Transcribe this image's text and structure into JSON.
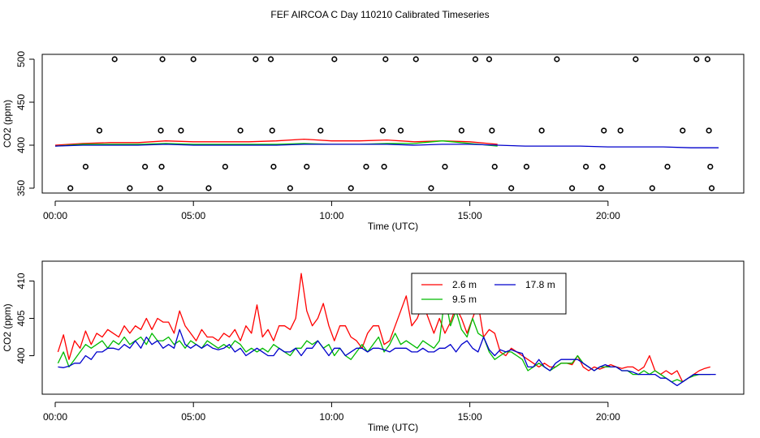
{
  "title": "FEF AIRCOA C  Day 110210  Calibrated Timeseries",
  "chart_data": [
    {
      "type": "scatter",
      "xlabel": "Time (UTC)",
      "ylabel": "CO2 (ppm)",
      "xlim": [
        0,
        24
      ],
      "ylim": [
        350,
        500
      ],
      "x_ticks": [
        0,
        5,
        10,
        15,
        20
      ],
      "x_tick_labels": [
        "00:00",
        "05:00",
        "10:00",
        "15:00",
        "20:00"
      ],
      "y_ticks": [
        350,
        400,
        450,
        500
      ],
      "y_tick_labels": [
        "350",
        "400",
        "450",
        "500"
      ],
      "grid": false,
      "legend": "none",
      "point_series": {
        "marker": "open-circle",
        "x": [
          0.55,
          1.1,
          1.6,
          2.15,
          2.7,
          3.25,
          3.8,
          3.85,
          3.82,
          3.88,
          4.55,
          5.0,
          5.55,
          6.15,
          6.7,
          7.25,
          7.8,
          7.85,
          7.9,
          8.5,
          9.1,
          9.6,
          10.1,
          10.7,
          11.25,
          11.85,
          11.9,
          11.95,
          12.5,
          13.05,
          13.6,
          14.1,
          14.7,
          15.2,
          15.7,
          15.8,
          15.9,
          16.5,
          17.05,
          17.6,
          18.15,
          18.7,
          19.2,
          19.75,
          19.8,
          19.85,
          20.45,
          21.0,
          21.6,
          22.15,
          22.7,
          23.2,
          23.6,
          23.65,
          23.7,
          23.75
        ],
        "y": [
          350,
          375,
          417,
          500,
          350,
          375,
          350,
          375,
          417,
          500,
          417,
          500,
          350,
          375,
          417,
          500,
          500,
          417,
          375,
          350,
          375,
          417,
          500,
          350,
          375,
          417,
          375,
          500,
          417,
          500,
          350,
          375,
          417,
          500,
          500,
          417,
          375,
          350,
          375,
          417,
          500,
          350,
          375,
          350,
          375,
          417,
          417,
          500,
          350,
          375,
          417,
          500,
          500,
          417,
          375,
          350
        ]
      },
      "line_series": [
        {
          "color": "#ff0000",
          "x": [
            0,
            1,
            2,
            3,
            4,
            5,
            6,
            7,
            8,
            9,
            10,
            11,
            12,
            13,
            14,
            15,
            16
          ],
          "y": [
            400,
            402,
            403,
            403,
            405,
            404,
            404,
            404,
            405,
            407,
            405,
            405,
            406,
            404,
            405,
            404,
            401
          ]
        },
        {
          "color": "#00cc00",
          "x": [
            0,
            1,
            2,
            3,
            4,
            5,
            6,
            7,
            8,
            9,
            10,
            11,
            12,
            13,
            14,
            15,
            16
          ],
          "y": [
            399,
            401,
            401,
            401,
            402,
            401,
            401,
            401,
            401,
            402,
            401,
            401,
            402,
            402,
            405,
            402,
            399
          ]
        },
        {
          "color": "#0000cc",
          "x": [
            0,
            1,
            2,
            3,
            4,
            5,
            6,
            7,
            8,
            9,
            10,
            11,
            12,
            13,
            14,
            15,
            16,
            17,
            18,
            19,
            20,
            21,
            22,
            23,
            24
          ],
          "y": [
            399,
            400,
            400,
            400,
            401,
            400,
            400,
            400,
            400,
            401,
            401,
            401,
            401,
            400,
            401,
            401,
            400,
            399,
            399,
            399,
            398,
            398,
            398,
            397,
            397
          ]
        }
      ]
    },
    {
      "type": "line",
      "xlabel": "Time (UTC)",
      "ylabel": "CO2 (ppm)",
      "xlim": [
        0,
        24
      ],
      "ylim": [
        395.5,
        412
      ],
      "x_ticks": [
        0,
        5,
        10,
        15,
        20
      ],
      "x_tick_labels": [
        "00:00",
        "05:00",
        "10:00",
        "15:00",
        "20:00"
      ],
      "y_ticks": [
        400,
        405,
        410
      ],
      "y_tick_labels": [
        "400",
        "405",
        "410"
      ],
      "grid": false,
      "legend": "top-center",
      "series": [
        {
          "name": "2.6 m",
          "color": "#ff0000",
          "x": [
            0.1,
            0.3,
            0.5,
            0.7,
            0.9,
            1.1,
            1.3,
            1.5,
            1.7,
            1.9,
            2.1,
            2.3,
            2.5,
            2.7,
            2.9,
            3.1,
            3.3,
            3.5,
            3.7,
            3.9,
            4.1,
            4.3,
            4.5,
            4.7,
            4.9,
            5.1,
            5.3,
            5.5,
            5.7,
            5.9,
            6.1,
            6.3,
            6.5,
            6.7,
            6.9,
            7.1,
            7.3,
            7.5,
            7.7,
            7.9,
            8.1,
            8.3,
            8.5,
            8.7,
            8.9,
            9.1,
            9.3,
            9.5,
            9.7,
            9.9,
            10.1,
            10.3,
            10.5,
            10.7,
            10.9,
            11.1,
            11.3,
            11.5,
            11.7,
            11.9,
            12.1,
            12.3,
            12.5,
            12.7,
            12.9,
            13.1,
            13.3,
            13.5,
            13.7,
            13.9,
            14.1,
            14.3,
            14.5,
            14.7,
            14.9,
            15.1,
            15.3,
            15.5,
            15.7,
            15.9,
            16.1,
            16.3,
            16.5,
            16.7,
            16.9,
            17.1,
            17.3,
            17.5,
            17.7,
            17.9,
            18.1,
            18.3,
            18.5,
            18.7,
            18.9,
            19.1,
            19.3,
            19.5,
            19.7,
            19.9,
            20.1,
            20.3,
            20.5,
            20.7,
            20.9,
            21.1,
            21.3,
            21.5,
            21.7,
            21.9,
            22.1,
            22.3,
            22.5,
            22.7,
            22.9,
            23.1,
            23.3,
            23.5,
            23.7
          ],
          "y": [
            400.5,
            402.8,
            399.5,
            402.0,
            401.0,
            403.3,
            401.5,
            403.0,
            402.5,
            403.5,
            403.0,
            402.5,
            404.0,
            403.0,
            404.0,
            403.5,
            405.0,
            403.5,
            405.0,
            404.5,
            404.5,
            403.0,
            406.0,
            404.0,
            403.0,
            402.0,
            403.5,
            402.5,
            402.5,
            402.0,
            403.0,
            402.5,
            403.5,
            402.0,
            404.0,
            403.0,
            406.8,
            402.5,
            403.5,
            402.0,
            404.0,
            404.0,
            403.5,
            405.0,
            411.0,
            406.0,
            404.0,
            405.0,
            407.0,
            404.0,
            402.0,
            404.0,
            404.0,
            402.5,
            402.0,
            401.0,
            403.0,
            404.0,
            404.0,
            401.5,
            402.0,
            404.0,
            406.0,
            408.0,
            404.0,
            405.0,
            407.0,
            405.0,
            403.0,
            405.0,
            403.0,
            404.5,
            406.5,
            405.0,
            403.0,
            405.0,
            407.0,
            402.5,
            403.5,
            403.0,
            400.5,
            400.0,
            401.0,
            400.5,
            400.0,
            399.5,
            399.0,
            398.5,
            399.0,
            398.5,
            398.5,
            399.0,
            399.0,
            398.8,
            400.0,
            398.5,
            398.0,
            398.5,
            398.2,
            398.5,
            398.8,
            398.5,
            398.3,
            398.5,
            398.5,
            398.0,
            398.5,
            400.0,
            398.0,
            397.5,
            398.0,
            397.5,
            398.0,
            396.5,
            397.0,
            397.5,
            398.0,
            398.3,
            398.5
          ]
        },
        {
          "name": "9.5 m",
          "color": "#00bb00",
          "x": [
            0.1,
            0.3,
            0.5,
            0.7,
            0.9,
            1.1,
            1.3,
            1.5,
            1.7,
            1.9,
            2.1,
            2.3,
            2.5,
            2.7,
            2.9,
            3.1,
            3.3,
            3.5,
            3.7,
            3.9,
            4.1,
            4.3,
            4.5,
            4.7,
            4.9,
            5.1,
            5.3,
            5.5,
            5.7,
            5.9,
            6.1,
            6.3,
            6.5,
            6.7,
            6.9,
            7.1,
            7.3,
            7.5,
            7.7,
            7.9,
            8.1,
            8.3,
            8.5,
            8.7,
            8.9,
            9.1,
            9.3,
            9.5,
            9.7,
            9.9,
            10.1,
            10.3,
            10.5,
            10.7,
            10.9,
            11.1,
            11.3,
            11.5,
            11.7,
            11.9,
            12.1,
            12.3,
            12.5,
            12.7,
            12.9,
            13.1,
            13.3,
            13.5,
            13.7,
            13.9,
            14.1,
            14.3,
            14.5,
            14.7,
            14.9,
            15.1,
            15.3,
            15.5,
            15.7,
            15.9,
            16.1,
            16.3,
            16.5,
            16.7,
            16.9,
            17.1,
            17.3,
            17.5,
            17.7,
            17.9,
            18.1,
            18.3,
            18.5,
            18.7,
            18.9,
            19.1,
            19.3,
            19.5,
            19.7,
            19.9,
            20.1,
            20.3,
            20.5,
            20.7,
            20.9,
            21.1,
            21.3,
            21.5,
            21.7,
            21.9,
            22.1,
            22.3,
            22.5,
            22.7,
            22.9,
            23.1,
            23.3,
            23.5,
            23.7
          ],
          "y": [
            399.0,
            400.5,
            398.5,
            399.5,
            400.5,
            401.5,
            401.0,
            401.5,
            402.0,
            401.0,
            402.0,
            401.5,
            402.5,
            401.5,
            402.0,
            402.5,
            401.5,
            403.0,
            402.0,
            402.0,
            402.5,
            401.5,
            402.0,
            401.0,
            402.0,
            401.5,
            401.0,
            402.0,
            401.5,
            401.0,
            401.5,
            401.0,
            402.0,
            401.5,
            400.5,
            401.0,
            400.5,
            401.0,
            400.5,
            401.5,
            401.0,
            400.5,
            400.0,
            401.0,
            401.0,
            402.0,
            401.5,
            402.0,
            401.0,
            401.5,
            400.0,
            401.0,
            400.0,
            399.5,
            400.5,
            401.5,
            400.5,
            401.5,
            402.5,
            400.5,
            401.5,
            403.0,
            401.5,
            402.0,
            401.5,
            401.0,
            402.0,
            401.5,
            401.0,
            402.0,
            408.0,
            404.0,
            406.0,
            403.5,
            402.5,
            405.0,
            403.0,
            402.5,
            400.5,
            399.5,
            400.0,
            400.5,
            400.5,
            400.0,
            399.5,
            398.0,
            398.5,
            399.0,
            398.5,
            398.0,
            398.5,
            399.0,
            399.0,
            399.0,
            400.0,
            399.0,
            398.5,
            398.0,
            398.5,
            398.5,
            398.5,
            398.5,
            398.0,
            398.0,
            397.5,
            397.5,
            398.0,
            397.5,
            398.0,
            397.5,
            397.0,
            396.5,
            396.8,
            396.5,
            397.0,
            397.3,
            397.5,
            397.5,
            397.5
          ]
        },
        {
          "name": "17.8 m",
          "color": "#0000cc",
          "x": [
            0.1,
            0.3,
            0.5,
            0.7,
            0.9,
            1.1,
            1.3,
            1.5,
            1.7,
            1.9,
            2.1,
            2.3,
            2.5,
            2.7,
            2.9,
            3.1,
            3.3,
            3.5,
            3.7,
            3.9,
            4.1,
            4.3,
            4.5,
            4.7,
            4.9,
            5.1,
            5.3,
            5.5,
            5.7,
            5.9,
            6.1,
            6.3,
            6.5,
            6.7,
            6.9,
            7.1,
            7.3,
            7.5,
            7.7,
            7.9,
            8.1,
            8.3,
            8.5,
            8.7,
            8.9,
            9.1,
            9.3,
            9.5,
            9.7,
            9.9,
            10.1,
            10.3,
            10.5,
            10.7,
            10.9,
            11.1,
            11.3,
            11.5,
            11.7,
            11.9,
            12.1,
            12.3,
            12.5,
            12.7,
            12.9,
            13.1,
            13.3,
            13.5,
            13.7,
            13.9,
            14.1,
            14.3,
            14.5,
            14.7,
            14.9,
            15.1,
            15.3,
            15.5,
            15.7,
            15.9,
            16.1,
            16.3,
            16.5,
            16.7,
            16.9,
            17.1,
            17.3,
            17.5,
            17.7,
            17.9,
            18.1,
            18.3,
            18.5,
            18.7,
            18.9,
            19.1,
            19.3,
            19.5,
            19.7,
            19.9,
            20.1,
            20.3,
            20.5,
            20.7,
            20.9,
            21.1,
            21.3,
            21.5,
            21.7,
            21.9,
            22.1,
            22.3,
            22.5,
            22.7,
            22.9,
            23.1,
            23.3,
            23.5,
            23.7,
            23.9
          ],
          "y": [
            398.5,
            398.4,
            398.6,
            399.0,
            399.0,
            400.0,
            399.5,
            400.5,
            400.5,
            401.0,
            401.0,
            400.8,
            401.5,
            401.0,
            402.0,
            401.0,
            402.5,
            401.5,
            402.0,
            401.0,
            401.5,
            401.0,
            403.5,
            401.5,
            401.0,
            401.5,
            401.0,
            401.5,
            401.0,
            400.8,
            401.0,
            401.5,
            400.5,
            401.0,
            400.0,
            400.5,
            401.0,
            400.5,
            400.0,
            400.0,
            401.0,
            400.5,
            400.5,
            401.0,
            400.0,
            401.0,
            401.0,
            402.0,
            401.0,
            400.0,
            401.0,
            401.0,
            400.0,
            400.5,
            401.0,
            401.0,
            400.5,
            401.0,
            401.0,
            400.8,
            400.5,
            401.0,
            401.0,
            401.0,
            400.5,
            400.5,
            401.0,
            400.5,
            400.5,
            401.0,
            401.0,
            401.5,
            400.5,
            401.5,
            402.0,
            401.0,
            400.5,
            402.5,
            400.8,
            400.0,
            400.8,
            400.5,
            400.8,
            400.5,
            400.3,
            398.5,
            398.5,
            399.5,
            398.5,
            398.0,
            399.0,
            399.5,
            399.5,
            399.5,
            399.5,
            399.0,
            398.5,
            398.0,
            398.5,
            398.8,
            398.5,
            398.5,
            398.0,
            398.0,
            397.8,
            397.5,
            397.5,
            397.5,
            397.5,
            397.0,
            397.0,
            396.5,
            396.0,
            396.5,
            397.0,
            397.5,
            397.5,
            397.5,
            397.5,
            397.5
          ]
        }
      ]
    }
  ]
}
